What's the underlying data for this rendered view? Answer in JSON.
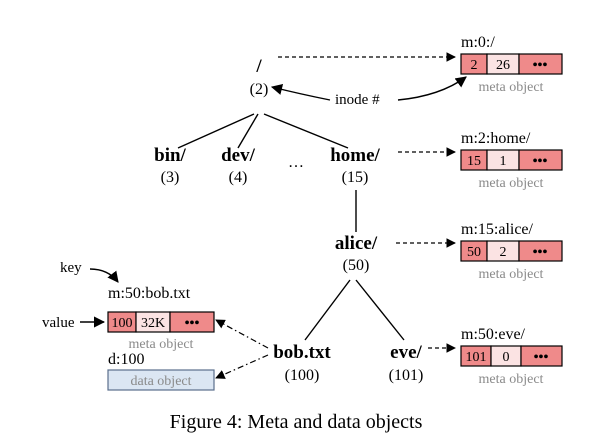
{
  "tree": {
    "root": {
      "name": "/",
      "inode": "(2)"
    },
    "bin": {
      "name": "bin/",
      "inode": "(3)"
    },
    "dev": {
      "name": "dev/",
      "inode": "(4)"
    },
    "ellipsis": "…",
    "home": {
      "name": "home/",
      "inode": "(15)"
    },
    "alice": {
      "name": "alice/",
      "inode": "(50)"
    },
    "bob": {
      "name": "bob.txt",
      "inode": "(100)"
    },
    "eve": {
      "name": "eve/",
      "inode": "(101)"
    }
  },
  "meta_objects": [
    {
      "key": "m:0:/",
      "cells": [
        "2",
        "26",
        "•••"
      ],
      "label": "meta object"
    },
    {
      "key": "m:2:home/",
      "cells": [
        "15",
        "1",
        "•••"
      ],
      "label": "meta object"
    },
    {
      "key": "m:15:alice/",
      "cells": [
        "50",
        "2",
        "•••"
      ],
      "label": "meta object"
    },
    {
      "key": "m:50:bob.txt",
      "cells": [
        "100",
        "32K",
        "•••"
      ],
      "label": "meta object"
    },
    {
      "key": "m:50:eve/",
      "cells": [
        "101",
        "0",
        "•••"
      ],
      "label": "meta object"
    }
  ],
  "data_object": {
    "key": "d:100",
    "label": "data object"
  },
  "annotations": {
    "inode": "inode #",
    "key": "key",
    "value": "value"
  },
  "caption": "Figure 4: Meta and data objects",
  "colors": {
    "cell_dark": "#ef8a8a",
    "cell_light": "#fbe3e3",
    "cell_medium": "#f3a0a0",
    "data_fill": "#dbe6f3",
    "data_stroke": "#5a6f8c",
    "stroke": "#000000"
  }
}
